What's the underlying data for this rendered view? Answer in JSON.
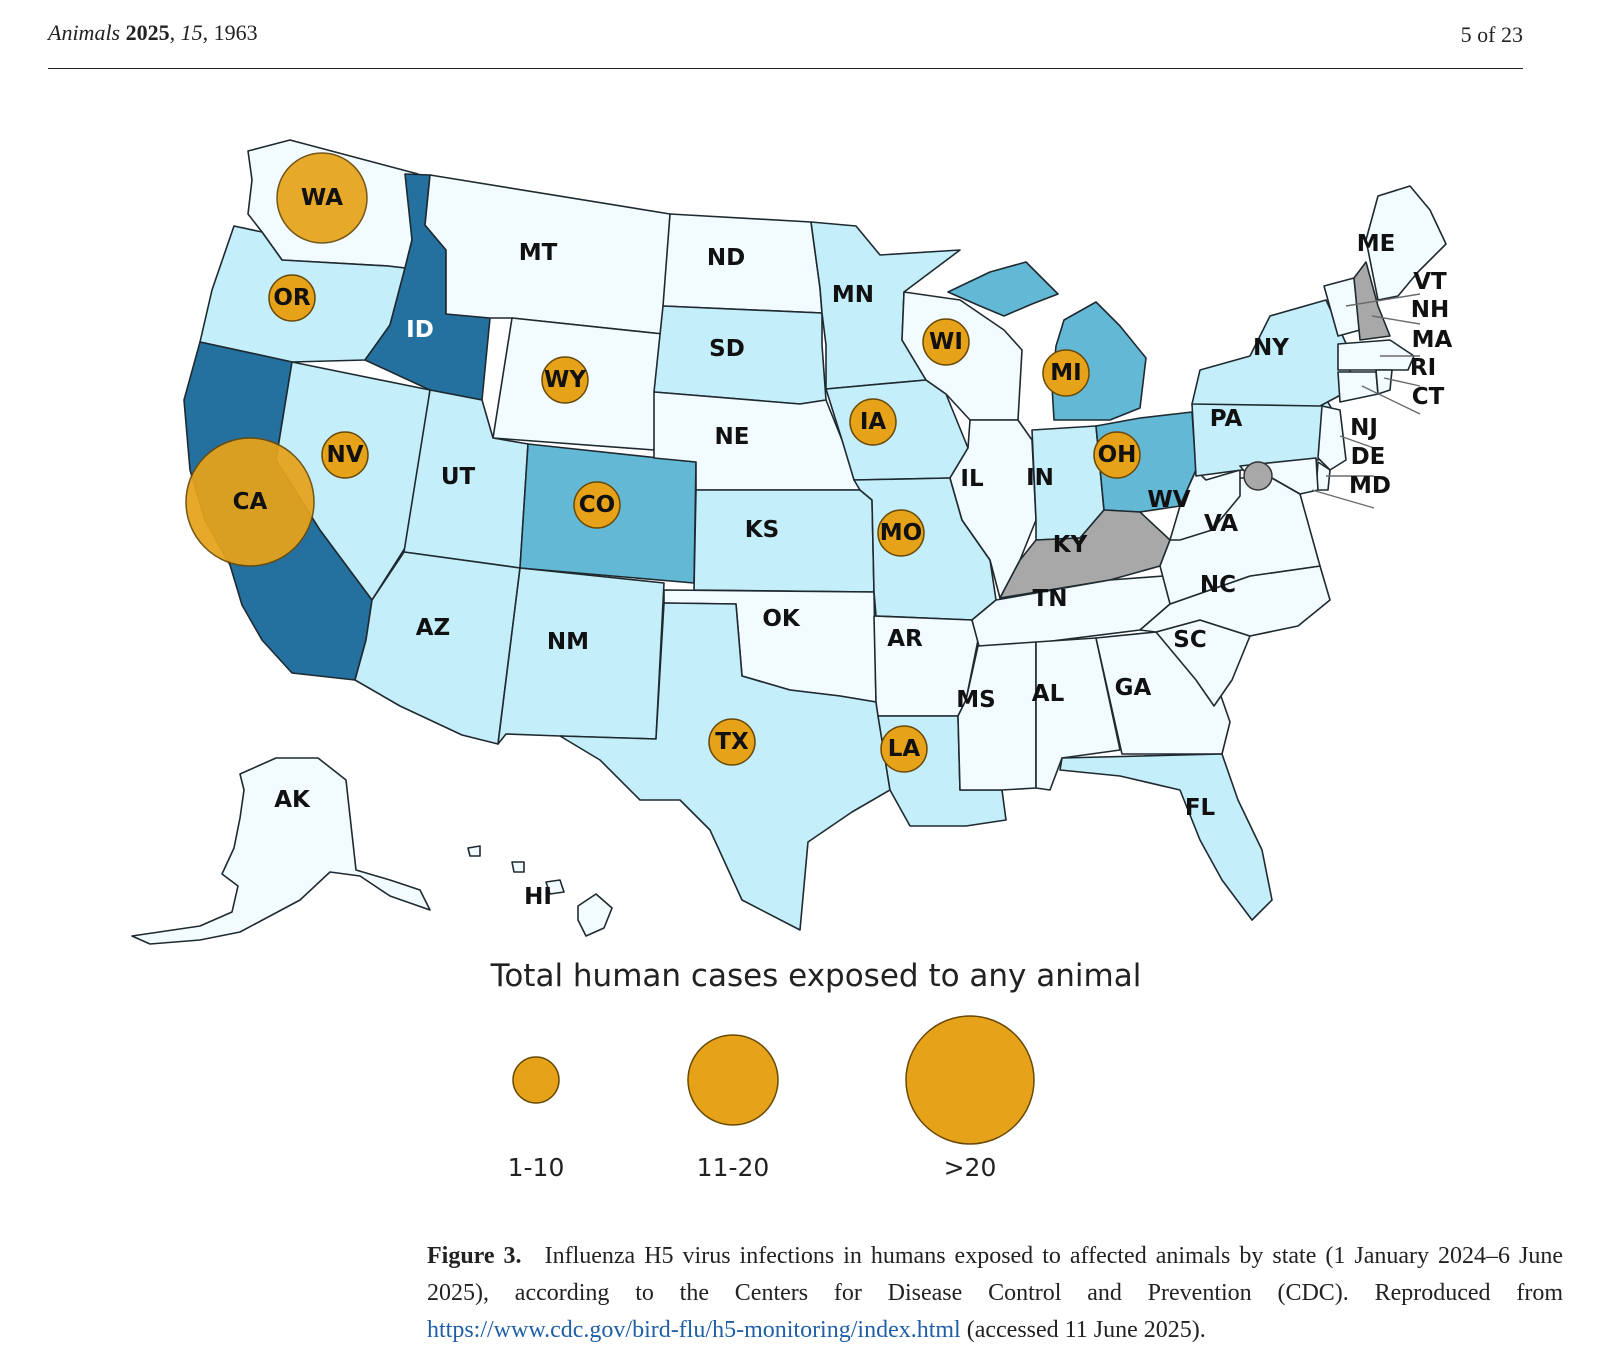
{
  "header": {
    "journal": "Animals",
    "year": "2025",
    "volume": "15",
    "article": "1963",
    "page": "5 of 23"
  },
  "colors": {
    "very_light": "#f2fbff",
    "light": "#c4eefa",
    "medium": "#63b8d6",
    "dark": "#2471a0",
    "gray": "#a8a8a8",
    "bubble": "#e6a31a",
    "outline": "#1f2a30"
  },
  "chart_data": {
    "type": "map",
    "title": "Total human cases exposed to any animal",
    "legend": {
      "title": "Total human cases exposed to any animal",
      "bins": [
        "1-10",
        "11-20",
        ">20"
      ]
    },
    "states_with_cases": [
      {
        "state": "WA",
        "bin": "11-20"
      },
      {
        "state": "CA",
        "bin": ">20"
      },
      {
        "state": "OR",
        "bin": "1-10"
      },
      {
        "state": "NV",
        "bin": "1-10"
      },
      {
        "state": "WY",
        "bin": "1-10"
      },
      {
        "state": "CO",
        "bin": "1-10"
      },
      {
        "state": "IA",
        "bin": "1-10"
      },
      {
        "state": "MO",
        "bin": "1-10"
      },
      {
        "state": "TX",
        "bin": "1-10"
      },
      {
        "state": "LA",
        "bin": "1-10"
      },
      {
        "state": "WI",
        "bin": "1-10"
      },
      {
        "state": "MI",
        "bin": "1-10"
      },
      {
        "state": "OH",
        "bin": "1-10"
      },
      {
        "state": "MD",
        "bin": "unlabeled (gray)"
      }
    ],
    "state_shading": {
      "dark": [
        "ID",
        "CA"
      ],
      "medium": [
        "CO",
        "MI",
        "OH"
      ],
      "light": [
        "OR",
        "NV",
        "UT",
        "AZ",
        "NM",
        "TX",
        "SD",
        "MN",
        "IA",
        "MO",
        "IN",
        "NY",
        "PA",
        "FL",
        "LA"
      ],
      "gray": [
        "KY",
        "NH"
      ],
      "very_light": [
        "WA",
        "MT",
        "ND",
        "WY",
        "NE",
        "KS",
        "OK",
        "AR",
        "WI",
        "IL",
        "TN",
        "MS",
        "AL",
        "GA",
        "SC",
        "NC",
        "VA",
        "WV",
        "ME",
        "VT",
        "MA",
        "RI",
        "CT",
        "NJ",
        "DE",
        "MD",
        "AK",
        "HI"
      ]
    },
    "state_labels": [
      "WA",
      "OR",
      "CA",
      "NV",
      "ID",
      "MT",
      "WY",
      "UT",
      "AZ",
      "NM",
      "CO",
      "ND",
      "SD",
      "NE",
      "KS",
      "OK",
      "TX",
      "MN",
      "IA",
      "MO",
      "AR",
      "LA",
      "WI",
      "IL",
      "MI",
      "IN",
      "OH",
      "KY",
      "TN",
      "MS",
      "AL",
      "GA",
      "FL",
      "SC",
      "NC",
      "VA",
      "WV",
      "PA",
      "NY",
      "ME",
      "VT",
      "NH",
      "MA",
      "RI",
      "CT",
      "NJ",
      "DE",
      "MD",
      "AK",
      "HI"
    ]
  },
  "caption": {
    "label": "Figure 3.",
    "text_before": "Influenza H5 virus infections in humans exposed to affected animals by state (1 January 2024–6 June 2025), according to the Centers for Disease Control and Prevention (CDC). Reproduced from",
    "url": "https://www.cdc.gov/bird-flu/h5-monitoring/index.html",
    "text_after": "(accessed 11 June 2025)."
  }
}
